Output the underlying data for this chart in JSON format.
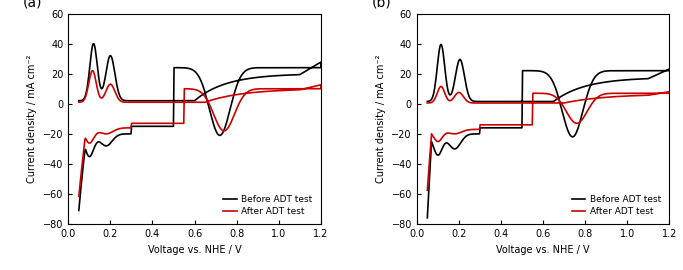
{
  "panel_a_label": "(a)",
  "panel_b_label": "(b)",
  "xlabel": "Voltage vs. NHE / V",
  "ylabel": "Current density / mA cm⁻²",
  "xlim": [
    0.0,
    1.2
  ],
  "ylim": [
    -80,
    60
  ],
  "yticks": [
    -80,
    -60,
    -40,
    -20,
    0,
    20,
    40,
    60
  ],
  "xticks": [
    0.0,
    0.2,
    0.4,
    0.6,
    0.8,
    1.0,
    1.2
  ],
  "legend_before": "Before ADT test",
  "legend_after": "After ADT test",
  "color_before": "#000000",
  "color_after": "#cc0000",
  "linewidth": 1.2
}
